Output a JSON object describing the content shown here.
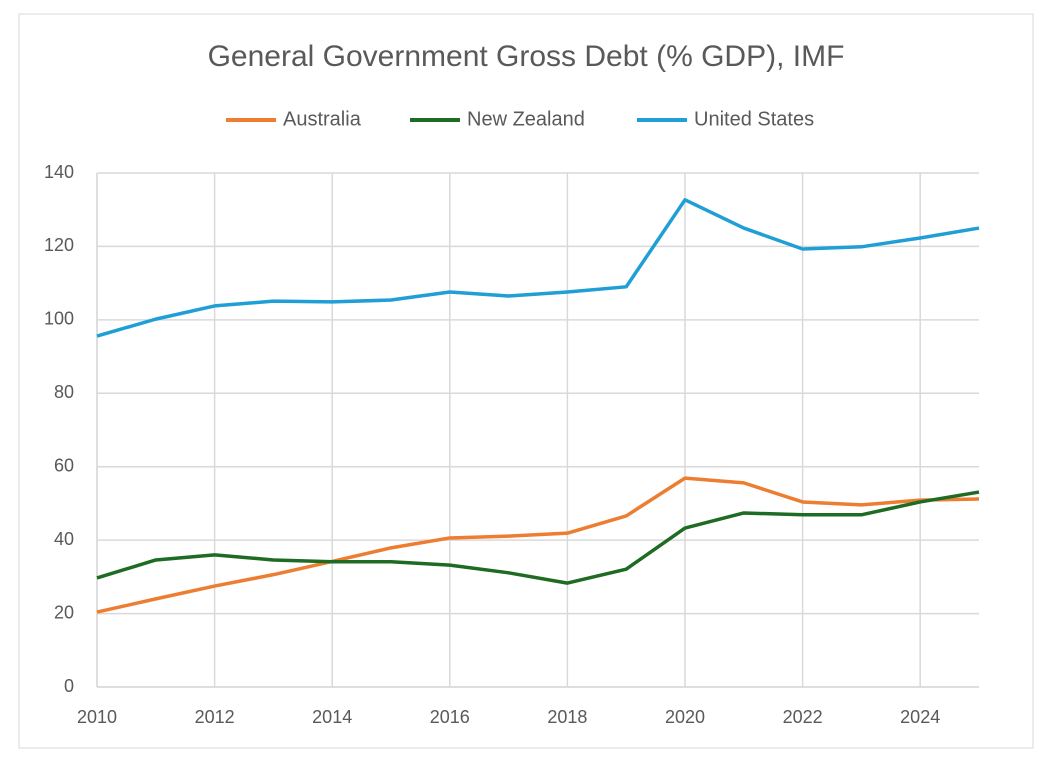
{
  "chart_data": {
    "type": "line",
    "title": "General Government Gross Debt (% GDP), IMF",
    "x": [
      2010,
      2011,
      2012,
      2013,
      2014,
      2015,
      2016,
      2017,
      2018,
      2019,
      2020,
      2021,
      2022,
      2023,
      2024,
      2025
    ],
    "xlim": [
      2010,
      2025
    ],
    "xticks": [
      2010,
      2012,
      2014,
      2016,
      2018,
      2020,
      2022,
      2024
    ],
    "ylim": [
      0,
      140
    ],
    "yticks": [
      0,
      20,
      40,
      60,
      80,
      100,
      120,
      140
    ],
    "grid": true,
    "legend": "top",
    "series": [
      {
        "name": "Australia",
        "color": "#ed7d31",
        "values": [
          20.4,
          24,
          27.5,
          30.6,
          34.2,
          37.9,
          40.6,
          41.1,
          41.9,
          46.6,
          56.9,
          55.6,
          50.4,
          49.6,
          50.9,
          51.2
        ]
      },
      {
        "name": "New Zealand",
        "color": "#1e6b23",
        "values": [
          29.7,
          34.6,
          36,
          34.6,
          34.1,
          34.1,
          33.2,
          31.1,
          28.3,
          32.1,
          43.3,
          47.4,
          46.9,
          46.9,
          50.4,
          53.1
        ]
      },
      {
        "name": "United States",
        "color": "#1f9fd6",
        "values": [
          95.6,
          100.2,
          103.8,
          105.1,
          104.9,
          105.4,
          107.6,
          106.5,
          107.6,
          109,
          132.7,
          125,
          119.3,
          119.9,
          122.3,
          125
        ]
      }
    ]
  }
}
